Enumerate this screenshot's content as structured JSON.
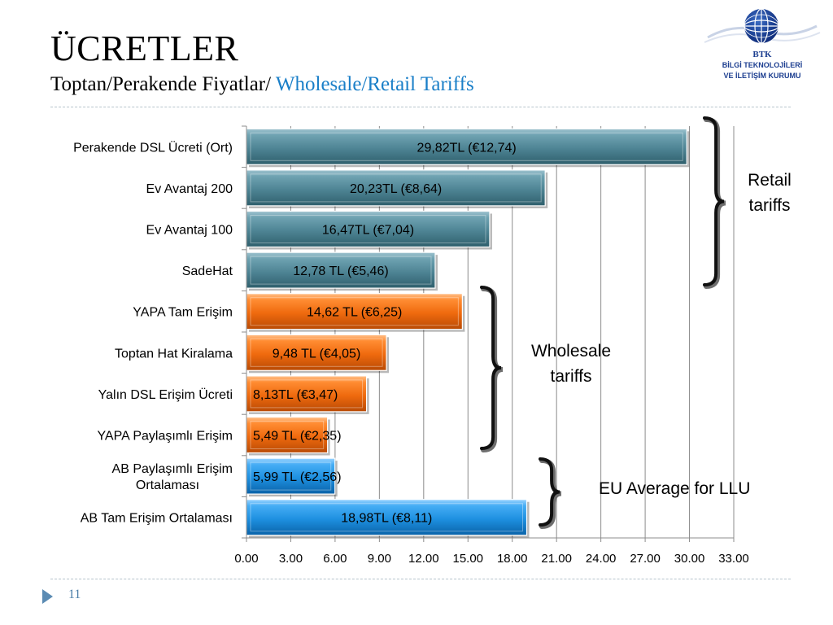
{
  "title": "ÜCRETLER",
  "subtitle_tr": "Toptan/Perakende Fiyatlar/",
  "subtitle_en": "Wholesale/Retail Tariffs",
  "logo": {
    "line1": "BTK",
    "line2": "BİLGİ TEKNOLOJİLERİ",
    "line3": "VE İLETİŞİM KURUMU",
    "icon": "globe-icon"
  },
  "page_number": "11",
  "colors": {
    "retail": "#4e8494",
    "wholesale": "#ef6a0e",
    "eu": "#1e90e0",
    "accent_blue": "#1a7fc8",
    "brand_navy": "#1b3d8f"
  },
  "chart_data": {
    "type": "bar",
    "orientation": "horizontal",
    "categories": [
      "Perakende DSL Ücreti (Ort)",
      "Ev Avantaj 200",
      "Ev Avantaj 100",
      "SadeHat",
      "YAPA Tam Erişim",
      "Toptan Hat Kiralama",
      "Yalın DSL Erişim Ücreti",
      "YAPA Paylaşımlı Erişim",
      "AB Paylaşımlı Erişim Ortalaması",
      "AB Tam Erişim Ortalaması"
    ],
    "values": [
      29.82,
      20.23,
      16.47,
      12.78,
      14.62,
      9.48,
      8.13,
      5.49,
      5.99,
      18.98
    ],
    "data_labels": [
      "29,82TL (€12,74)",
      "20,23TL (€8,64)",
      "16,47TL (€7,04)",
      "12,78 TL (€5,46)",
      "14,62 TL (€6,25)",
      "9,48 TL (€4,05)",
      "8,13TL (€3,47)",
      "5,49 TL (€2,35)",
      "5,99 TL (€2,56)",
      "18,98TL (€8,11)"
    ],
    "groups": [
      "retail",
      "retail",
      "retail",
      "retail",
      "wholesale",
      "wholesale",
      "wholesale",
      "wholesale",
      "eu",
      "eu"
    ],
    "xlim": [
      0,
      33
    ],
    "xticks": [
      "0.00",
      "3.00",
      "6.00",
      "9.00",
      "12.00",
      "15.00",
      "18.00",
      "21.00",
      "24.00",
      "27.00",
      "30.00",
      "33.00"
    ],
    "grid": "vertical",
    "annotations": [
      {
        "text": [
          "Retail",
          "tariffs"
        ],
        "group": "retail"
      },
      {
        "text": [
          "Wholesale",
          "tariffs"
        ],
        "group": "wholesale"
      },
      {
        "text": [
          "EU Average for LLU"
        ],
        "group": "eu"
      }
    ]
  }
}
